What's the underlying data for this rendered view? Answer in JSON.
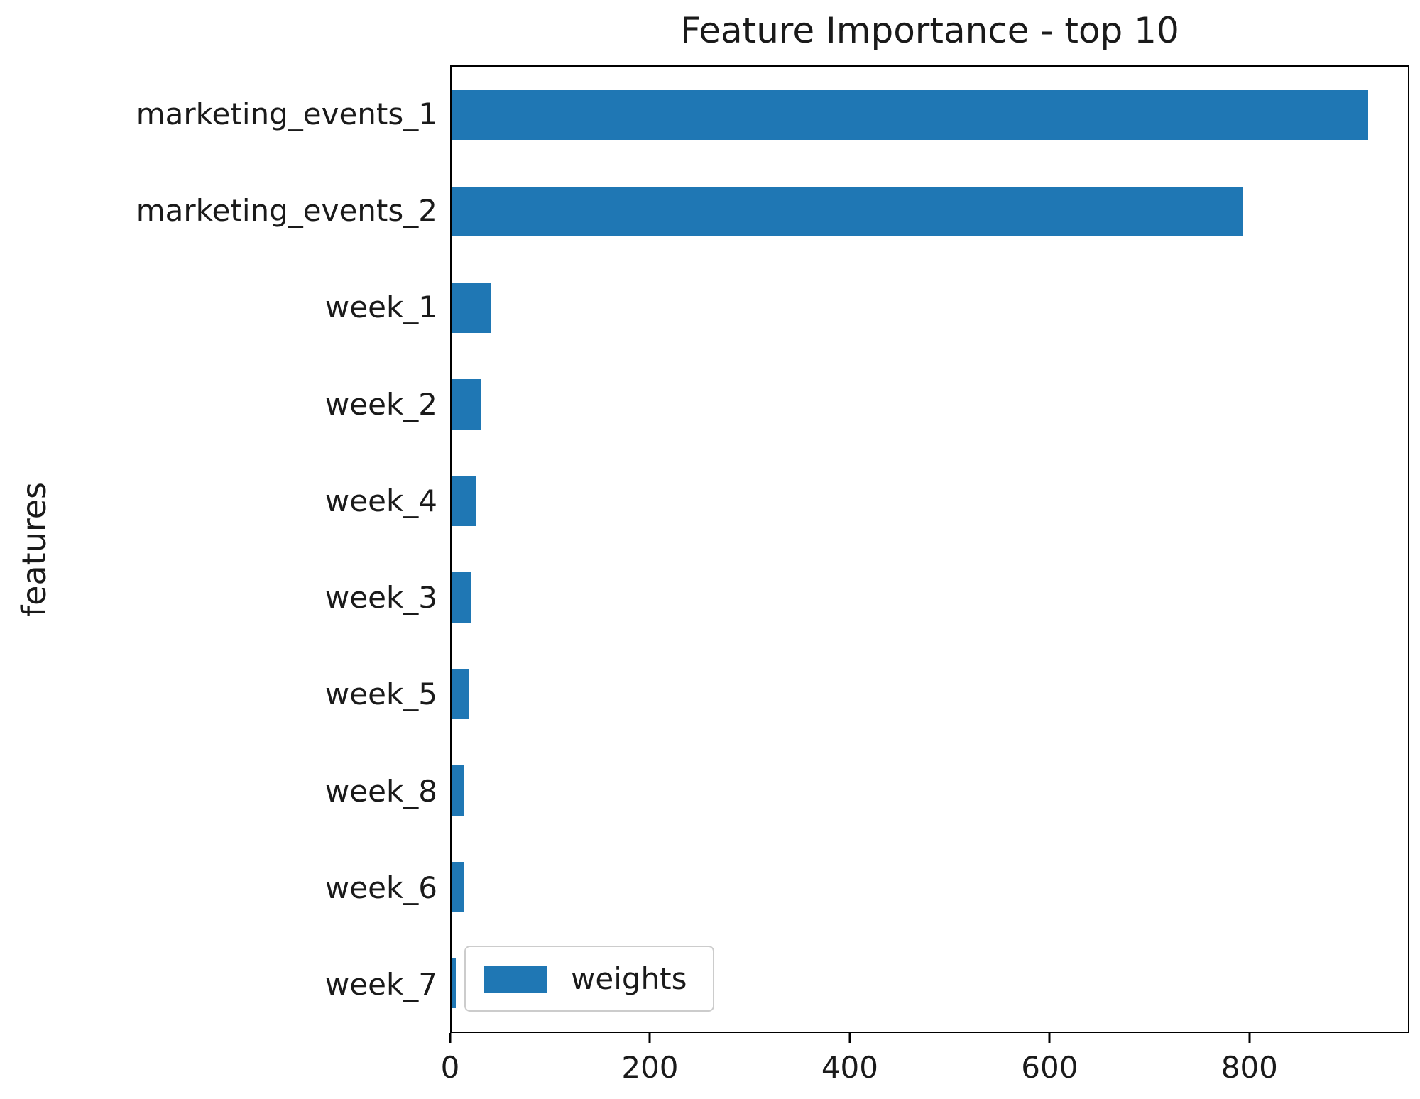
{
  "chart_data": {
    "type": "bar",
    "orientation": "horizontal",
    "title": "Feature Importance - top 10",
    "xlabel": "",
    "ylabel": "features",
    "categories": [
      "marketing_events_1",
      "marketing_events_2",
      "week_1",
      "week_2",
      "week_4",
      "week_3",
      "week_5",
      "week_8",
      "week_6",
      "week_7"
    ],
    "series": [
      {
        "name": "weights",
        "values": [
          920,
          795,
          40,
          30,
          25,
          20,
          18,
          12,
          12,
          4
        ]
      }
    ],
    "xlim": [
      0,
      960
    ],
    "xticks": [
      0,
      200,
      400,
      600,
      800
    ],
    "grid": false,
    "legend": {
      "label": "weights",
      "position": "lower left"
    },
    "bar_color": "#1f77b4",
    "spine_color": "#000000",
    "background_color": "#ffffff"
  }
}
